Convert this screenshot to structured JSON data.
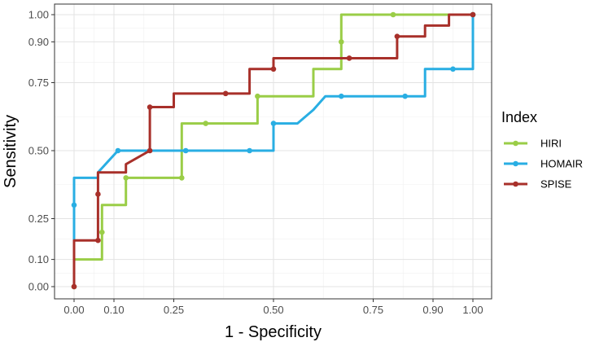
{
  "chart_data": {
    "type": "line",
    "xlabel": "1 - Specificity",
    "ylabel": "Sensitivity",
    "xlim": [
      0,
      1
    ],
    "ylim": [
      0,
      1
    ],
    "x_ticks": [
      0.0,
      0.1,
      0.25,
      0.5,
      0.75,
      0.9,
      1.0
    ],
    "x_tick_labels": [
      "0.00",
      "0.10",
      "0.25",
      "0.50",
      "0.75",
      "0.90",
      "1.00"
    ],
    "y_ticks": [
      0.0,
      0.1,
      0.25,
      0.5,
      0.75,
      0.9,
      1.0
    ],
    "y_tick_labels": [
      "0.00",
      "0.10",
      "0.25",
      "0.50",
      "0.75",
      "0.90",
      "1.00"
    ],
    "grid": true,
    "legend": {
      "title": "Index",
      "placement": "right"
    },
    "series": [
      {
        "name": "HIRI",
        "color": "#9ACD47",
        "path": [
          [
            0,
            0
          ],
          [
            0,
            0.1
          ],
          [
            0.07,
            0.1
          ],
          [
            0.07,
            0.2
          ],
          [
            0.07,
            0.3
          ],
          [
            0.13,
            0.3
          ],
          [
            0.13,
            0.4
          ],
          [
            0.27,
            0.4
          ],
          [
            0.27,
            0.6
          ],
          [
            0.46,
            0.6
          ],
          [
            0.46,
            0.7
          ],
          [
            0.6,
            0.7
          ],
          [
            0.6,
            0.8
          ],
          [
            0.67,
            0.8
          ],
          [
            0.67,
            1.0
          ],
          [
            1.0,
            1.0
          ]
        ],
        "points": [
          [
            0,
            0
          ],
          [
            0.07,
            0.2
          ],
          [
            0.13,
            0.4
          ],
          [
            0.27,
            0.4
          ],
          [
            0.33,
            0.6
          ],
          [
            0.46,
            0.7
          ],
          [
            0.67,
            0.9
          ],
          [
            0.8,
            1.0
          ],
          [
            1.0,
            1.0
          ]
        ]
      },
      {
        "name": "HOMAIR",
        "color": "#29AEE3",
        "path": [
          [
            0,
            0
          ],
          [
            0,
            0.4
          ],
          [
            0.06,
            0.4
          ],
          [
            0.06,
            0.42
          ],
          [
            0.11,
            0.5
          ],
          [
            0.5,
            0.5
          ],
          [
            0.5,
            0.6
          ],
          [
            0.56,
            0.6
          ],
          [
            0.6,
            0.65
          ],
          [
            0.63,
            0.7
          ],
          [
            0.88,
            0.7
          ],
          [
            0.88,
            0.8
          ],
          [
            1.0,
            0.8
          ],
          [
            1.0,
            1.0
          ]
        ],
        "points": [
          [
            0,
            0.3
          ],
          [
            0.11,
            0.5
          ],
          [
            0.28,
            0.5
          ],
          [
            0.44,
            0.5
          ],
          [
            0.5,
            0.6
          ],
          [
            0.67,
            0.7
          ],
          [
            0.83,
            0.7
          ],
          [
            0.95,
            0.8
          ],
          [
            1.0,
            1.0
          ]
        ]
      },
      {
        "name": "SPISE",
        "color": "#A8302A",
        "path": [
          [
            0,
            0
          ],
          [
            0,
            0.17
          ],
          [
            0.06,
            0.17
          ],
          [
            0.06,
            0.42
          ],
          [
            0.13,
            0.42
          ],
          [
            0.13,
            0.45
          ],
          [
            0.19,
            0.5
          ],
          [
            0.19,
            0.66
          ],
          [
            0.25,
            0.66
          ],
          [
            0.25,
            0.71
          ],
          [
            0.44,
            0.71
          ],
          [
            0.44,
            0.8
          ],
          [
            0.5,
            0.8
          ],
          [
            0.5,
            0.84
          ],
          [
            0.67,
            0.84
          ],
          [
            0.69,
            0.84
          ],
          [
            0.81,
            0.84
          ],
          [
            0.81,
            0.92
          ],
          [
            0.88,
            0.92
          ],
          [
            0.88,
            0.96
          ],
          [
            0.94,
            0.96
          ],
          [
            0.94,
            1.0
          ],
          [
            1.0,
            1.0
          ]
        ],
        "points": [
          [
            0,
            0
          ],
          [
            0.06,
            0.17
          ],
          [
            0.06,
            0.34
          ],
          [
            0.19,
            0.5
          ],
          [
            0.19,
            0.66
          ],
          [
            0.38,
            0.71
          ],
          [
            0.5,
            0.8
          ],
          [
            0.69,
            0.84
          ],
          [
            0.81,
            0.92
          ],
          [
            1.0,
            1.0
          ]
        ]
      }
    ]
  }
}
